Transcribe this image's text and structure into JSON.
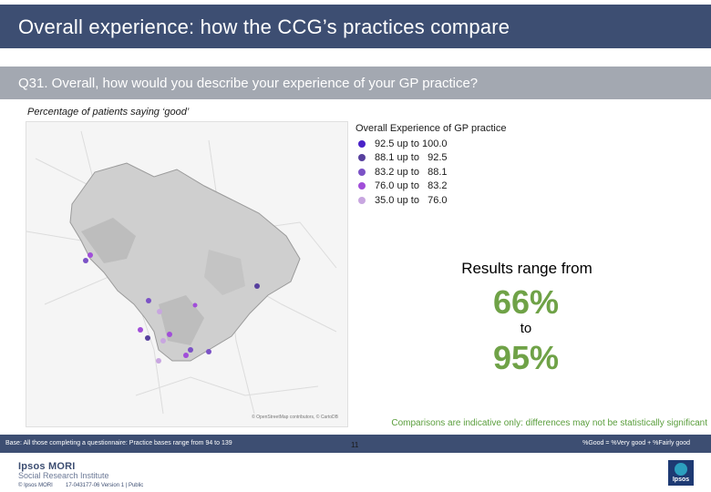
{
  "title": "Overall experience: how the CCG’s practices compare",
  "question": "Q31. Overall, how would you describe your experience of your GP practice?",
  "subtitle": "Percentage of patients saying ‘good’",
  "map": {
    "legend_title": "Overall Experience of GP practice",
    "legend": [
      {
        "label": "92.5 up to 100.0",
        "color": "#4a22c8"
      },
      {
        "label": "88.1 up to   92.5",
        "color": "#57409e"
      },
      {
        "label": "83.2 up to   88.1",
        "color": "#7b52c6"
      },
      {
        "label": "76.0 up to   83.2",
        "color": "#a14ed9"
      },
      {
        "label": "35.0 up to   76.0",
        "color": "#c8a6e0"
      }
    ],
    "credit": "© OpenStreetMap contributors, © CartoDB"
  },
  "range": {
    "lead": "Results range from",
    "low": "66%",
    "to": "to",
    "high": "95%"
  },
  "caveat": "Comparisons are indicative only: differences may not be statistically significant",
  "base": "Base: All those completing a questionnaire: Practice bases range from 94 to 139",
  "good_definition": "%Good = %Very good + %Fairly good",
  "footer": {
    "logo": "Ipsos MORI",
    "logo_sub": "Social Research Institute",
    "copyright": "© Ipsos MORI",
    "job": "17-043177-06 Version 1 | Public",
    "page": "11",
    "brand": "Ipsos"
  }
}
